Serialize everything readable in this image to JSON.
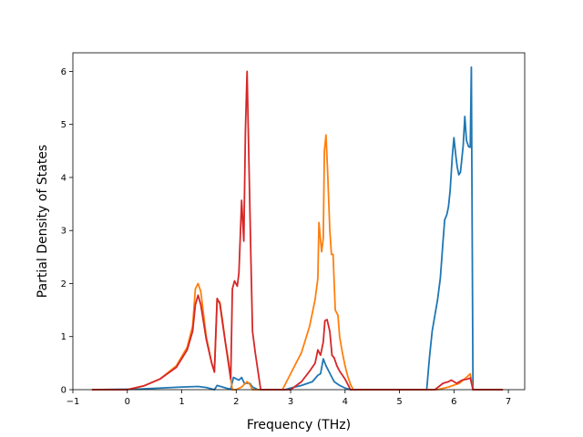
{
  "chart_data": {
    "type": "line",
    "title": "",
    "xlabel": "Frequency (THz)",
    "ylabel": "Partial Density of States",
    "xlim": [
      -1,
      7.3
    ],
    "ylim": [
      0,
      6.35
    ],
    "xticks": [
      -1,
      0,
      1,
      2,
      3,
      4,
      5,
      6,
      7
    ],
    "yticks": [
      0,
      1,
      2,
      3,
      4,
      5,
      6
    ],
    "grid": false,
    "legend": "none",
    "series": [
      {
        "color": "#1f77b4",
        "points": [
          [
            -0.65,
            0
          ],
          [
            0.2,
            0.01
          ],
          [
            0.6,
            0.03
          ],
          [
            1.0,
            0.05
          ],
          [
            1.3,
            0.06
          ],
          [
            1.45,
            0.04
          ],
          [
            1.6,
            0.0
          ],
          [
            1.65,
            0.08
          ],
          [
            1.75,
            0.05
          ],
          [
            1.85,
            0.02
          ],
          [
            1.9,
            0.01
          ],
          [
            1.95,
            0.23
          ],
          [
            2.05,
            0.18
          ],
          [
            2.1,
            0.23
          ],
          [
            2.15,
            0.12
          ],
          [
            2.25,
            0.12
          ],
          [
            2.3,
            0.05
          ],
          [
            2.4,
            0.0
          ],
          [
            2.9,
            0.0
          ],
          [
            3.0,
            0.03
          ],
          [
            3.2,
            0.08
          ],
          [
            3.4,
            0.15
          ],
          [
            3.5,
            0.27
          ],
          [
            3.55,
            0.3
          ],
          [
            3.6,
            0.58
          ],
          [
            3.65,
            0.45
          ],
          [
            3.7,
            0.35
          ],
          [
            3.8,
            0.15
          ],
          [
            3.9,
            0.08
          ],
          [
            4.0,
            0.03
          ],
          [
            4.1,
            0.0
          ],
          [
            5.5,
            0.0
          ],
          [
            5.55,
            0.6
          ],
          [
            5.6,
            1.1
          ],
          [
            5.7,
            1.7
          ],
          [
            5.75,
            2.1
          ],
          [
            5.8,
            2.8
          ],
          [
            5.83,
            3.2
          ],
          [
            5.87,
            3.3
          ],
          [
            5.9,
            3.45
          ],
          [
            5.93,
            3.75
          ],
          [
            5.97,
            4.4
          ],
          [
            6.0,
            4.75
          ],
          [
            6.03,
            4.45
          ],
          [
            6.06,
            4.2
          ],
          [
            6.09,
            4.05
          ],
          [
            6.12,
            4.1
          ],
          [
            6.17,
            4.6
          ],
          [
            6.2,
            5.15
          ],
          [
            6.23,
            4.7
          ],
          [
            6.27,
            4.58
          ],
          [
            6.3,
            4.57
          ],
          [
            6.32,
            6.08
          ],
          [
            6.35,
            0.0
          ],
          [
            6.9,
            0.0
          ]
        ]
      },
      {
        "color": "#ff7f0e",
        "points": [
          [
            -0.65,
            0
          ],
          [
            0.0,
            0.0
          ],
          [
            0.3,
            0.07
          ],
          [
            0.6,
            0.2
          ],
          [
            0.9,
            0.45
          ],
          [
            1.1,
            0.8
          ],
          [
            1.2,
            1.2
          ],
          [
            1.25,
            1.9
          ],
          [
            1.3,
            2.0
          ],
          [
            1.35,
            1.85
          ],
          [
            1.45,
            1.0
          ],
          [
            1.55,
            0.5
          ],
          [
            1.6,
            0.35
          ],
          [
            1.65,
            1.7
          ],
          [
            1.7,
            1.65
          ],
          [
            1.75,
            1.3
          ],
          [
            1.8,
            0.9
          ],
          [
            1.85,
            0.6
          ],
          [
            1.9,
            0.2
          ],
          [
            1.93,
            0.0
          ],
          [
            2.0,
            0.0
          ],
          [
            2.1,
            0.05
          ],
          [
            2.2,
            0.15
          ],
          [
            2.25,
            0.1
          ],
          [
            2.3,
            0.0
          ],
          [
            2.85,
            0.0
          ],
          [
            3.0,
            0.3
          ],
          [
            3.2,
            0.7
          ],
          [
            3.35,
            1.2
          ],
          [
            3.45,
            1.7
          ],
          [
            3.5,
            2.1
          ],
          [
            3.52,
            3.15
          ],
          [
            3.57,
            2.6
          ],
          [
            3.6,
            2.85
          ],
          [
            3.62,
            4.5
          ],
          [
            3.65,
            4.8
          ],
          [
            3.68,
            4.1
          ],
          [
            3.72,
            3.0
          ],
          [
            3.75,
            2.55
          ],
          [
            3.78,
            2.55
          ],
          [
            3.82,
            1.5
          ],
          [
            3.87,
            1.4
          ],
          [
            3.9,
            1.0
          ],
          [
            3.95,
            0.7
          ],
          [
            4.0,
            0.45
          ],
          [
            4.05,
            0.25
          ],
          [
            4.1,
            0.1
          ],
          [
            4.15,
            0.0
          ],
          [
            5.7,
            0.0
          ],
          [
            5.9,
            0.05
          ],
          [
            6.1,
            0.12
          ],
          [
            6.25,
            0.25
          ],
          [
            6.3,
            0.3
          ],
          [
            6.35,
            0.0
          ],
          [
            6.9,
            0.0
          ]
        ]
      },
      {
        "color": "#d62728",
        "points": [
          [
            -0.65,
            0
          ],
          [
            0.0,
            0.0
          ],
          [
            0.3,
            0.07
          ],
          [
            0.6,
            0.2
          ],
          [
            0.9,
            0.42
          ],
          [
            1.1,
            0.75
          ],
          [
            1.2,
            1.1
          ],
          [
            1.25,
            1.6
          ],
          [
            1.3,
            1.78
          ],
          [
            1.35,
            1.6
          ],
          [
            1.45,
            0.95
          ],
          [
            1.55,
            0.5
          ],
          [
            1.6,
            0.33
          ],
          [
            1.65,
            1.72
          ],
          [
            1.7,
            1.62
          ],
          [
            1.75,
            1.25
          ],
          [
            1.8,
            0.9
          ],
          [
            1.85,
            0.55
          ],
          [
            1.9,
            0.2
          ],
          [
            1.93,
            1.9
          ],
          [
            1.97,
            2.05
          ],
          [
            2.02,
            1.95
          ],
          [
            2.05,
            2.2
          ],
          [
            2.1,
            3.57
          ],
          [
            2.14,
            2.8
          ],
          [
            2.17,
            4.9
          ],
          [
            2.2,
            6.0
          ],
          [
            2.23,
            4.5
          ],
          [
            2.27,
            2.5
          ],
          [
            2.3,
            1.1
          ],
          [
            2.35,
            0.7
          ],
          [
            2.4,
            0.35
          ],
          [
            2.45,
            0.0
          ],
          [
            3.0,
            0.0
          ],
          [
            3.2,
            0.15
          ],
          [
            3.35,
            0.35
          ],
          [
            3.45,
            0.5
          ],
          [
            3.5,
            0.75
          ],
          [
            3.55,
            0.65
          ],
          [
            3.6,
            0.9
          ],
          [
            3.63,
            1.3
          ],
          [
            3.67,
            1.32
          ],
          [
            3.72,
            1.1
          ],
          [
            3.76,
            0.65
          ],
          [
            3.8,
            0.6
          ],
          [
            3.85,
            0.45
          ],
          [
            3.9,
            0.35
          ],
          [
            4.0,
            0.2
          ],
          [
            4.05,
            0.1
          ],
          [
            4.1,
            0.0
          ],
          [
            5.65,
            0.0
          ],
          [
            5.8,
            0.12
          ],
          [
            5.9,
            0.15
          ],
          [
            5.95,
            0.18
          ],
          [
            6.05,
            0.12
          ],
          [
            6.15,
            0.18
          ],
          [
            6.25,
            0.2
          ],
          [
            6.3,
            0.22
          ],
          [
            6.35,
            0.0
          ],
          [
            6.9,
            0.0
          ]
        ]
      }
    ]
  }
}
